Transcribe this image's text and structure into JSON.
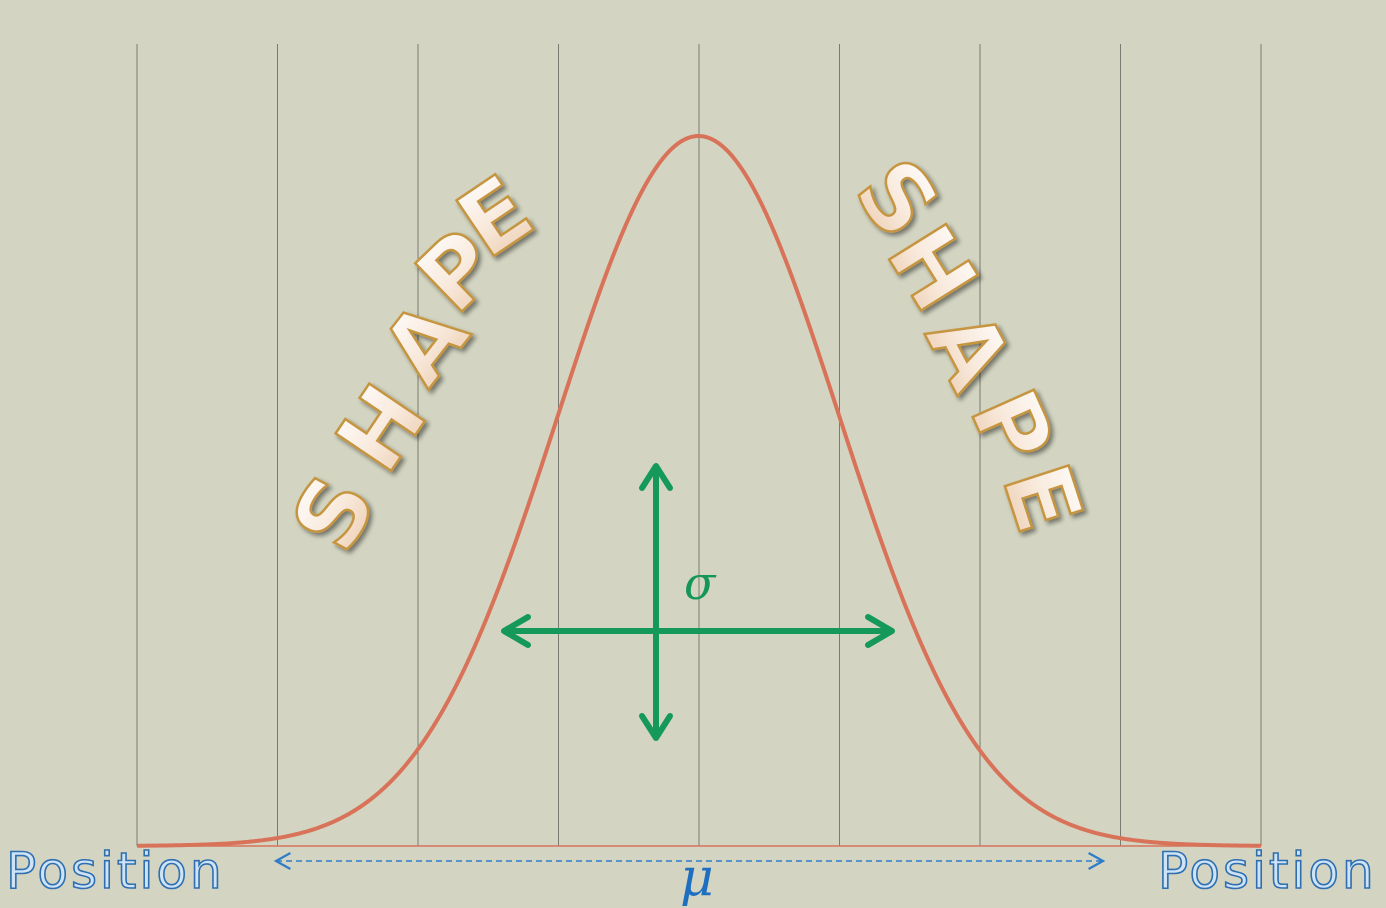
{
  "left_label": "Position",
  "right_label": "Position",
  "mean_symbol": "μ",
  "std_symbol": "σ",
  "shape_left": "SHAPE",
  "shape_right": "SHAPE",
  "colors": {
    "background": "#d3d5c2",
    "curve": "#d8735a",
    "grid": "#7a7a72",
    "sigma_arrows": "#15995a",
    "mu_arrow": "#2f7cc8",
    "position_text": "#cfe3f7",
    "shape_fill": "#fbeee3",
    "shape_stroke": "#c69541"
  },
  "icons": {
    "sigma_arrows": "four-way-arrow-icon",
    "mu_arrow": "double-headed-dashed-arrow-icon"
  }
}
